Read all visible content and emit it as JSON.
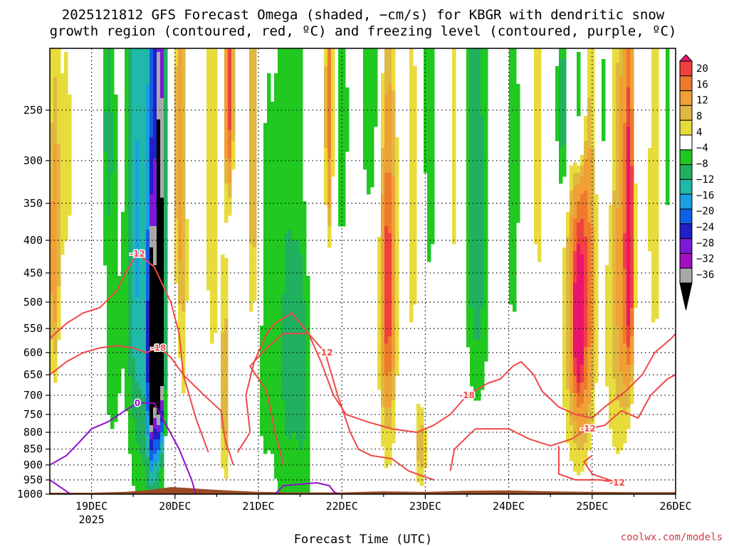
{
  "title_line1": "2025121812 GFS Forecast Omega (shaded, −cm/s) for KBGR with dendritic snow",
  "title_line2": "growth region (contoured, red, ºC) and freezing level (contoured, purple, ºC)",
  "credit": "coolwx.com/models",
  "colors": {
    "dgz_contour": "#f04848",
    "freezing_contour": "#9010c8",
    "terrain": "#9a4a24",
    "grid": "#000000"
  },
  "chart_data": {
    "type": "heatmap",
    "xlabel": "Forecast Time (UTC)",
    "ylabel": "",
    "x_ticks": [
      "19DEC",
      "20DEC",
      "21DEC",
      "22DEC",
      "23DEC",
      "24DEC",
      "25DEC",
      "26DEC"
    ],
    "x_tick_year": "2025",
    "x_range_days": [
      18.5,
      26.0
    ],
    "y_ticks": [
      250,
      300,
      350,
      400,
      450,
      500,
      550,
      600,
      650,
      700,
      750,
      800,
      850,
      900,
      950,
      1000
    ],
    "y_range_hpa": [
      200,
      1000
    ],
    "y_scale": "log",
    "grid": true,
    "colorbar": {
      "labels": [
        "20",
        "16",
        "12",
        "8",
        "4",
        "−4",
        "−8",
        "−12",
        "−16",
        "−20",
        "−24",
        "−28",
        "−32",
        "−36"
      ],
      "colors": [
        "#ea1470",
        "#f04040",
        "#ee7a2c",
        "#f0a035",
        "#e0b840",
        "#e8dc3c",
        "#ffffff",
        "#20c820",
        "#20b060",
        "#20b8a8",
        "#1aa0e0",
        "#1060e8",
        "#2020c8",
        "#7a1ad8",
        "#a010c0",
        "#a8a8a8",
        "#000000"
      ],
      "placement": "right"
    },
    "omega_blobs": [
      {
        "t": 18.55,
        "p": 420,
        "dt": 0.07,
        "dp": 260,
        "v": 10
      },
      {
        "t": 18.7,
        "p": 300,
        "dt": 0.1,
        "dp": 200,
        "v": 5
      },
      {
        "t": 19.2,
        "p": 260,
        "dt": 0.08,
        "dp": 140,
        "v": -9
      },
      {
        "t": 19.25,
        "p": 600,
        "dt": 0.12,
        "dp": 300,
        "v": -6
      },
      {
        "t": 19.5,
        "p": 350,
        "dt": 0.1,
        "dp": 350,
        "v": -8
      },
      {
        "t": 19.6,
        "p": 450,
        "dt": 0.15,
        "dp": 600,
        "v": -12
      },
      {
        "t": 19.75,
        "p": 420,
        "dt": 0.08,
        "dp": 600,
        "v": -20
      },
      {
        "t": 19.83,
        "p": 300,
        "dt": 0.05,
        "dp": 250,
        "v": -30
      },
      {
        "t": 19.82,
        "p": 640,
        "dt": 0.05,
        "dp": 200,
        "v": -37
      },
      {
        "t": 19.72,
        "p": 620,
        "dt": 0.04,
        "dp": 200,
        "v": -37
      },
      {
        "t": 20.05,
        "p": 280,
        "dt": 0.06,
        "dp": 200,
        "v": 8
      },
      {
        "t": 20.1,
        "p": 500,
        "dt": 0.08,
        "dp": 400,
        "v": 5
      },
      {
        "t": 20.45,
        "p": 330,
        "dt": 0.1,
        "dp": 400,
        "v": 6
      },
      {
        "t": 20.65,
        "p": 230,
        "dt": 0.05,
        "dp": 100,
        "v": 18
      },
      {
        "t": 20.6,
        "p": 700,
        "dt": 0.06,
        "dp": 300,
        "v": 8
      },
      {
        "t": 20.95,
        "p": 300,
        "dt": 0.09,
        "dp": 350,
        "v": 10
      },
      {
        "t": 21.05,
        "p": 500,
        "dt": 0.12,
        "dp": 500,
        "v": -6
      },
      {
        "t": 21.35,
        "p": 600,
        "dt": 0.18,
        "dp": 600,
        "v": -9
      },
      {
        "t": 21.55,
        "p": 600,
        "dt": 0.1,
        "dp": 500,
        "v": -7
      },
      {
        "t": 21.6,
        "p": 280,
        "dt": 0.08,
        "dp": 200,
        "v": 6
      },
      {
        "t": 21.85,
        "p": 250,
        "dt": 0.05,
        "dp": 150,
        "v": 14
      },
      {
        "t": 22.0,
        "p": 260,
        "dt": 0.1,
        "dp": 200,
        "v": -6
      },
      {
        "t": 22.35,
        "p": 230,
        "dt": 0.12,
        "dp": 150,
        "v": -8
      },
      {
        "t": 22.55,
        "p": 450,
        "dt": 0.14,
        "dp": 600,
        "v": 7
      },
      {
        "t": 22.55,
        "p": 480,
        "dt": 0.07,
        "dp": 200,
        "v": 13
      },
      {
        "t": 22.85,
        "p": 350,
        "dt": 0.1,
        "dp": 400,
        "v": 5
      },
      {
        "t": 22.95,
        "p": 850,
        "dt": 0.08,
        "dp": 150,
        "v": 7
      },
      {
        "t": 23.05,
        "p": 250,
        "dt": 0.1,
        "dp": 300,
        "v": -6
      },
      {
        "t": 23.35,
        "p": 280,
        "dt": 0.1,
        "dp": 300,
        "v": 5
      },
      {
        "t": 23.6,
        "p": 300,
        "dt": 0.12,
        "dp": 350,
        "v": -8
      },
      {
        "t": 23.65,
        "p": 450,
        "dt": 0.15,
        "dp": 300,
        "v": -5
      },
      {
        "t": 24.05,
        "p": 300,
        "dt": 0.1,
        "dp": 350,
        "v": -6
      },
      {
        "t": 24.35,
        "p": 300,
        "dt": 0.08,
        "dp": 300,
        "v": 5
      },
      {
        "t": 24.65,
        "p": 250,
        "dt": 0.08,
        "dp": 100,
        "v": -14
      },
      {
        "t": 24.85,
        "p": 240,
        "dt": 0.08,
        "dp": 90,
        "v": -16
      },
      {
        "t": 24.8,
        "p": 500,
        "dt": 0.2,
        "dp": 450,
        "v": 8
      },
      {
        "t": 24.9,
        "p": 470,
        "dt": 0.12,
        "dp": 300,
        "v": 12
      },
      {
        "t": 24.83,
        "p": 550,
        "dt": 0.05,
        "dp": 120,
        "v": 19
      },
      {
        "t": 25.3,
        "p": 480,
        "dt": 0.18,
        "dp": 500,
        "v": 7
      },
      {
        "t": 25.42,
        "p": 410,
        "dt": 0.08,
        "dp": 250,
        "v": 12
      },
      {
        "t": 25.45,
        "p": 400,
        "dt": 0.03,
        "dp": 180,
        "v": 20
      },
      {
        "t": 25.15,
        "p": 250,
        "dt": 0.07,
        "dp": 120,
        "v": -8
      },
      {
        "t": 25.75,
        "p": 350,
        "dt": 0.1,
        "dp": 300,
        "v": 6
      },
      {
        "t": 25.9,
        "p": 250,
        "dt": 0.05,
        "dp": 200,
        "v": -6
      }
    ],
    "dgz_contours": [
      {
        "label": "-12",
        "points": [
          [
            18.5,
            570
          ],
          [
            18.7,
            540
          ],
          [
            18.9,
            520
          ],
          [
            19.1,
            510
          ],
          [
            19.3,
            480
          ],
          [
            19.45,
            440
          ],
          [
            19.55,
            420
          ],
          [
            19.75,
            440
          ],
          [
            19.95,
            500
          ],
          [
            20.05,
            560
          ],
          [
            20.1,
            650
          ],
          [
            20.25,
            760
          ],
          [
            20.4,
            860
          ]
        ]
      },
      {
        "label": "-18",
        "points": [
          [
            18.5,
            650
          ],
          [
            18.7,
            620
          ],
          [
            18.9,
            600
          ],
          [
            19.1,
            590
          ],
          [
            19.3,
            585
          ],
          [
            19.5,
            590
          ],
          [
            19.65,
            600
          ],
          [
            19.8,
            590
          ],
          [
            19.95,
            610
          ],
          [
            20.1,
            650
          ],
          [
            20.35,
            700
          ],
          [
            20.55,
            740
          ],
          [
            20.6,
            820
          ],
          [
            20.7,
            900
          ]
        ]
      },
      {
        "label": "-12",
        "points": [
          [
            21.3,
            900
          ],
          [
            21.2,
            800
          ],
          [
            21.1,
            690
          ],
          [
            20.9,
            630
          ],
          [
            21.1,
            590
          ],
          [
            21.3,
            560
          ],
          [
            21.6,
            560
          ],
          [
            21.8,
            600
          ],
          [
            21.95,
            700
          ],
          [
            22.1,
            800
          ],
          [
            22.2,
            850
          ],
          [
            22.35,
            870
          ],
          [
            22.6,
            880
          ],
          [
            22.8,
            920
          ],
          [
            23.1,
            950
          ]
        ]
      },
      {
        "label": "-18",
        "points": [
          [
            20.75,
            860
          ],
          [
            20.9,
            800
          ],
          [
            20.85,
            700
          ],
          [
            20.95,
            620
          ],
          [
            21.1,
            560
          ],
          [
            21.2,
            540
          ],
          [
            21.4,
            520
          ],
          [
            21.6,
            560
          ],
          [
            21.75,
            620
          ],
          [
            21.9,
            700
          ],
          [
            22.05,
            750
          ],
          [
            22.3,
            770
          ],
          [
            22.6,
            790
          ],
          [
            22.9,
            800
          ],
          [
            23.1,
            780
          ],
          [
            23.3,
            750
          ],
          [
            23.5,
            700
          ],
          [
            23.75,
            670
          ],
          [
            23.9,
            660
          ],
          [
            24.05,
            630
          ],
          [
            24.15,
            620
          ],
          [
            24.3,
            650
          ],
          [
            24.4,
            690
          ],
          [
            24.6,
            730
          ],
          [
            24.8,
            750
          ],
          [
            25.0,
            760
          ],
          [
            25.15,
            730
          ],
          [
            25.4,
            690
          ],
          [
            25.6,
            650
          ],
          [
            25.75,
            600
          ],
          [
            25.95,
            570
          ],
          [
            26.0,
            560
          ]
        ]
      },
      {
        "label": "-12",
        "points": [
          [
            23.3,
            920
          ],
          [
            23.35,
            850
          ],
          [
            23.6,
            790
          ],
          [
            24.0,
            790
          ],
          [
            24.25,
            820
          ],
          [
            24.5,
            840
          ],
          [
            24.75,
            820
          ],
          [
            24.95,
            790
          ],
          [
            25.15,
            780
          ],
          [
            25.35,
            740
          ],
          [
            25.55,
            760
          ],
          [
            25.7,
            700
          ],
          [
            25.9,
            660
          ],
          [
            26.0,
            650
          ]
        ]
      },
      {
        "label": "-12",
        "points": [
          [
            24.6,
            840
          ],
          [
            24.6,
            930
          ],
          [
            24.8,
            950
          ],
          [
            25.1,
            950
          ],
          [
            25.3,
            960
          ],
          [
            25.0,
            930
          ],
          [
            24.9,
            890
          ],
          [
            25.0,
            870
          ]
        ]
      }
    ],
    "freezing_contours": [
      {
        "label": "0",
        "points": [
          [
            18.5,
            900
          ],
          [
            18.7,
            870
          ],
          [
            18.85,
            830
          ],
          [
            19.0,
            790
          ],
          [
            19.2,
            770
          ],
          [
            19.4,
            740
          ],
          [
            19.55,
            720
          ],
          [
            19.75,
            720
          ],
          [
            19.85,
            760
          ],
          [
            20.05,
            850
          ],
          [
            20.2,
            950
          ],
          [
            20.25,
            1000
          ]
        ]
      },
      {
        "label": "",
        "points": [
          [
            18.5,
            950
          ],
          [
            18.6,
            970
          ],
          [
            18.7,
            990
          ],
          [
            18.75,
            1000
          ]
        ]
      },
      {
        "label": "",
        "points": [
          [
            21.2,
            1000
          ],
          [
            21.3,
            970
          ],
          [
            21.5,
            965
          ],
          [
            21.7,
            960
          ],
          [
            21.85,
            970
          ],
          [
            21.9,
            990
          ],
          [
            21.95,
            1000
          ]
        ]
      }
    ],
    "terrain_surface_hpa": [
      [
        18.5,
        995
      ],
      [
        19.0,
        995
      ],
      [
        19.4,
        992
      ],
      [
        19.7,
        985
      ],
      [
        19.95,
        975
      ],
      [
        20.15,
        978
      ],
      [
        20.4,
        983
      ],
      [
        20.7,
        988
      ],
      [
        21.0,
        992
      ],
      [
        21.5,
        994
      ],
      [
        22.0,
        994
      ],
      [
        22.5,
        990
      ],
      [
        23.0,
        992
      ],
      [
        23.5,
        988
      ],
      [
        24.0,
        987
      ],
      [
        24.5,
        990
      ],
      [
        25.0,
        992
      ],
      [
        25.5,
        993
      ],
      [
        26.0,
        993
      ]
    ]
  }
}
